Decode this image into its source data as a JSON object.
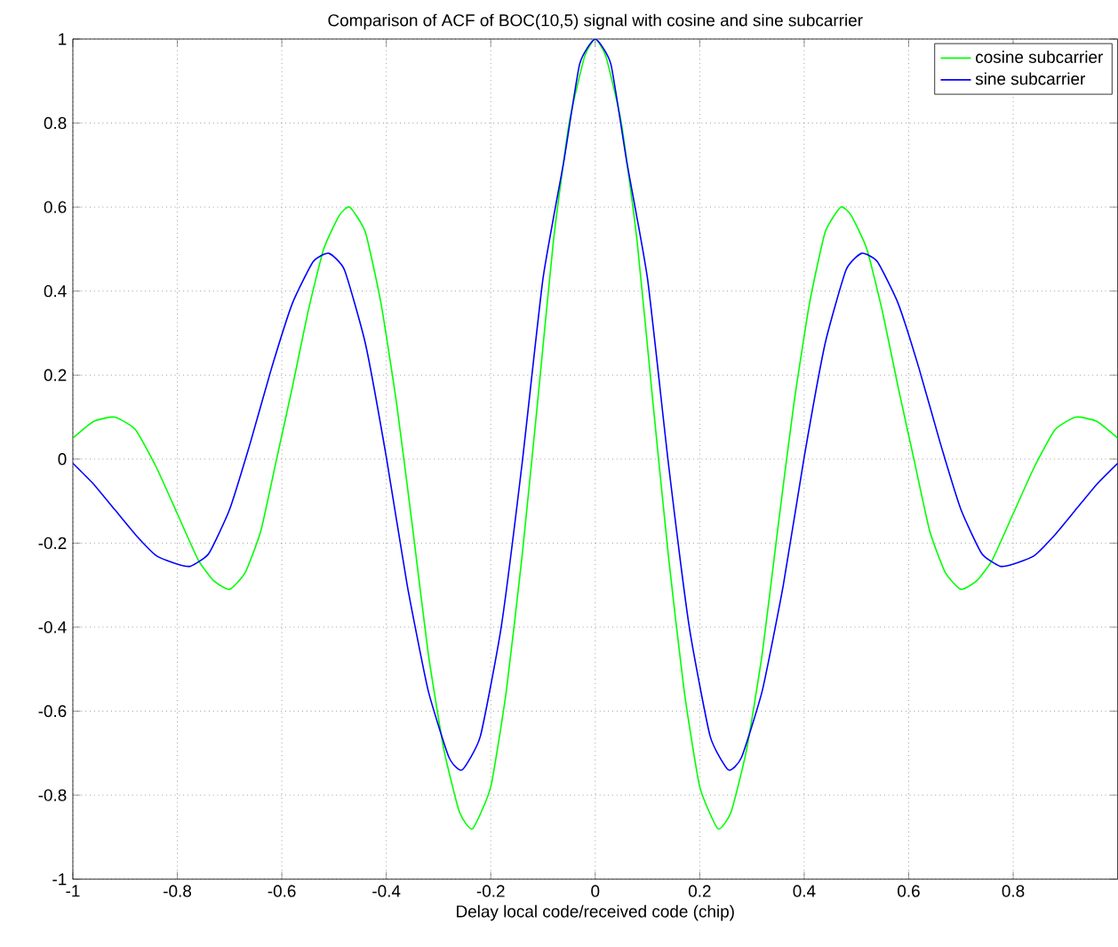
{
  "chart_data": {
    "type": "line",
    "title": "Comparison of ACF of BOC(10,5) signal with cosine and sine subcarrier",
    "xlabel": "Delay local code/received code  (chip)",
    "xlim": [
      -1,
      1
    ],
    "ylim": [
      -1,
      1
    ],
    "xticks": [
      -1,
      -0.8,
      -0.6,
      -0.4,
      -0.2,
      0,
      0.2,
      0.4,
      0.6,
      0.8
    ],
    "yticks": [
      -1,
      -0.8,
      -0.6,
      -0.4,
      -0.2,
      0,
      0.2,
      0.4,
      0.6,
      0.8,
      1
    ],
    "grid": true,
    "legend": "top right",
    "series": [
      {
        "name": "cosine subcarrier",
        "color": "#00ff00",
        "x": [
          -1,
          -0.96,
          -0.92,
          -0.88,
          -0.84,
          -0.8,
          -0.76,
          -0.73,
          -0.7,
          -0.67,
          -0.64,
          -0.61,
          -0.58,
          -0.55,
          -0.52,
          -0.49,
          -0.47,
          -0.44,
          -0.41,
          -0.38,
          -0.35,
          -0.32,
          -0.29,
          -0.26,
          -0.235,
          -0.2,
          -0.17,
          -0.14,
          -0.11,
          -0.08,
          -0.05,
          -0.02,
          0,
          0.02,
          0.05,
          0.08,
          0.11,
          0.14,
          0.17,
          0.2,
          0.235,
          0.26,
          0.29,
          0.32,
          0.35,
          0.38,
          0.41,
          0.44,
          0.47,
          0.49,
          0.52,
          0.55,
          0.58,
          0.61,
          0.64,
          0.67,
          0.7,
          0.73,
          0.76,
          0.8,
          0.84,
          0.88,
          0.92,
          0.96,
          1
        ],
        "values": [
          0.05,
          0.09,
          0.1,
          0.07,
          -0.02,
          -0.13,
          -0.24,
          -0.29,
          -0.31,
          -0.27,
          -0.17,
          0.0,
          0.17,
          0.35,
          0.5,
          0.58,
          0.6,
          0.54,
          0.37,
          0.13,
          -0.16,
          -0.46,
          -0.69,
          -0.84,
          -0.88,
          -0.78,
          -0.55,
          -0.23,
          0.14,
          0.52,
          0.8,
          0.96,
          1.0,
          0.96,
          0.8,
          0.52,
          0.14,
          -0.23,
          -0.55,
          -0.78,
          -0.88,
          -0.84,
          -0.69,
          -0.46,
          -0.16,
          0.13,
          0.37,
          0.54,
          0.6,
          0.58,
          0.5,
          0.35,
          0.17,
          0.0,
          -0.17,
          -0.27,
          -0.31,
          -0.29,
          -0.24,
          -0.13,
          -0.02,
          0.07,
          0.1,
          0.09,
          0.05
        ]
      },
      {
        "name": "sine subcarrier",
        "color": "#0000ff",
        "x": [
          -1,
          -0.96,
          -0.92,
          -0.88,
          -0.84,
          -0.8,
          -0.775,
          -0.74,
          -0.7,
          -0.66,
          -0.62,
          -0.58,
          -0.54,
          -0.51,
          -0.48,
          -0.44,
          -0.4,
          -0.36,
          -0.32,
          -0.28,
          -0.255,
          -0.22,
          -0.18,
          -0.14,
          -0.1,
          -0.06,
          -0.03,
          0,
          0.03,
          0.06,
          0.1,
          0.14,
          0.18,
          0.22,
          0.255,
          0.28,
          0.32,
          0.36,
          0.4,
          0.44,
          0.48,
          0.51,
          0.54,
          0.58,
          0.62,
          0.66,
          0.7,
          0.74,
          0.775,
          0.8,
          0.84,
          0.88,
          0.92,
          0.96,
          1
        ],
        "values": [
          -0.01,
          -0.06,
          -0.12,
          -0.18,
          -0.23,
          -0.25,
          -0.255,
          -0.225,
          -0.12,
          0.04,
          0.215,
          0.37,
          0.47,
          0.49,
          0.45,
          0.275,
          0.005,
          -0.3,
          -0.55,
          -0.71,
          -0.74,
          -0.66,
          -0.4,
          -0.01,
          0.43,
          0.71,
          0.94,
          1,
          0.94,
          0.71,
          0.43,
          -0.01,
          -0.4,
          -0.66,
          -0.74,
          -0.71,
          -0.55,
          -0.3,
          0.005,
          0.275,
          0.45,
          0.49,
          0.47,
          0.37,
          0.215,
          0.04,
          -0.12,
          -0.225,
          -0.255,
          -0.25,
          -0.23,
          -0.18,
          -0.12,
          -0.06,
          -0.01
        ]
      }
    ]
  }
}
